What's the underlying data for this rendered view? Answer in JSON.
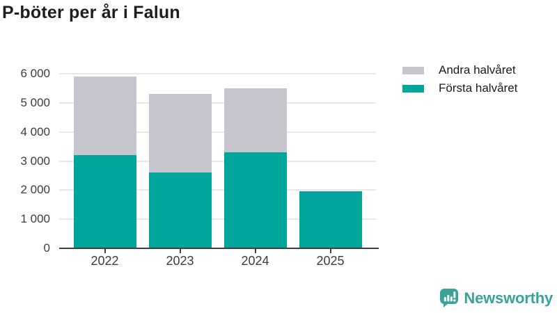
{
  "title": "P-böter per år i Falun",
  "legend": [
    {
      "label": "Andra halvåret",
      "color": "#c7c5ce"
    },
    {
      "label": "Första halvåret",
      "color": "#00a59c"
    }
  ],
  "chart_data": {
    "type": "bar",
    "stacked": true,
    "title": "P-böter per år i Falun",
    "categories": [
      "2022",
      "2023",
      "2024",
      "2025"
    ],
    "series": [
      {
        "name": "Första halvåret",
        "color": "#00a59c",
        "values": [
          3200,
          2600,
          3300,
          1950
        ]
      },
      {
        "name": "Andra halvåret",
        "color": "#c7c5ce",
        "values": [
          2700,
          2700,
          2200,
          0
        ]
      }
    ],
    "totals": [
      5900,
      5300,
      5500,
      1950
    ],
    "xlabel": "",
    "ylabel": "",
    "ylim": [
      0,
      6000
    ],
    "ytick_step": 1000,
    "ytick_labels": [
      "0",
      "1 000",
      "2 000",
      "3 000",
      "4 000",
      "5 000",
      "6 000"
    ],
    "grid": true,
    "legend_position": "top-right"
  },
  "branding": {
    "label": "Newsworthy",
    "color": "#3ba29b"
  }
}
